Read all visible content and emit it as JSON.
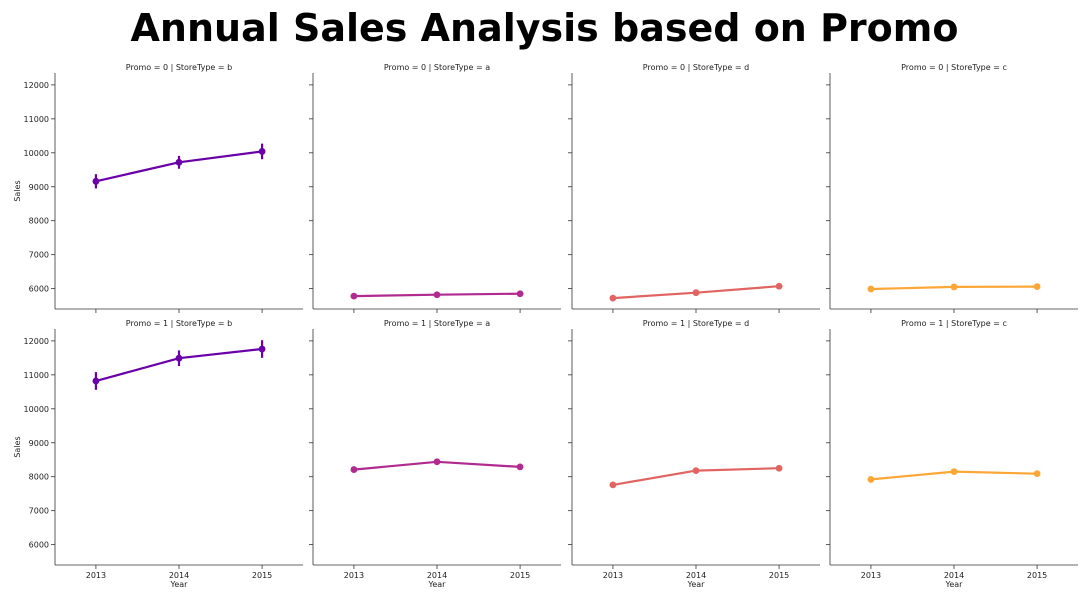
{
  "title": "Annual Sales Analysis based on Promo",
  "chart_data": {
    "type": "line",
    "title": "Annual Sales Analysis based on Promo",
    "xlabel": "Year",
    "ylabel": "Sales",
    "x": [
      "2013",
      "2014",
      "2015"
    ],
    "ylim": [
      5400,
      12350
    ],
    "yticks": [
      6000,
      7000,
      8000,
      9000,
      10000,
      11000,
      12000
    ],
    "grid": false,
    "panels": [
      {
        "title": "Promo = 0 | StoreType = b",
        "color": "#6a00a8",
        "values": [
          9160,
          9720,
          10040
        ],
        "err": [
          210,
          190,
          230
        ]
      },
      {
        "title": "Promo = 0 | StoreType = a",
        "color": "#b12a90",
        "values": [
          5780,
          5820,
          5850
        ],
        "err": [
          0,
          0,
          0
        ]
      },
      {
        "title": "Promo = 0 | StoreType = d",
        "color": "#e16462",
        "values": [
          5720,
          5880,
          6070
        ],
        "err": [
          0,
          0,
          0
        ]
      },
      {
        "title": "Promo = 0 | StoreType = c",
        "color": "#fca636",
        "values": [
          5990,
          6050,
          6060
        ],
        "err": [
          0,
          0,
          0
        ]
      },
      {
        "title": "Promo = 1 | StoreType = b",
        "color": "#6a00a8",
        "values": [
          10820,
          11490,
          11760
        ],
        "err": [
          260,
          230,
          260
        ]
      },
      {
        "title": "Promo = 1 | StoreType = a",
        "color": "#b12a90",
        "values": [
          8210,
          8440,
          8290
        ],
        "err": [
          0,
          0,
          0
        ]
      },
      {
        "title": "Promo = 1 | StoreType = d",
        "color": "#e16462",
        "values": [
          7760,
          8180,
          8250
        ],
        "err": [
          0,
          0,
          0
        ]
      },
      {
        "title": "Promo = 1 | StoreType = c",
        "color": "#fca636",
        "values": [
          7920,
          8150,
          8090
        ],
        "err": [
          0,
          0,
          0
        ]
      }
    ]
  }
}
